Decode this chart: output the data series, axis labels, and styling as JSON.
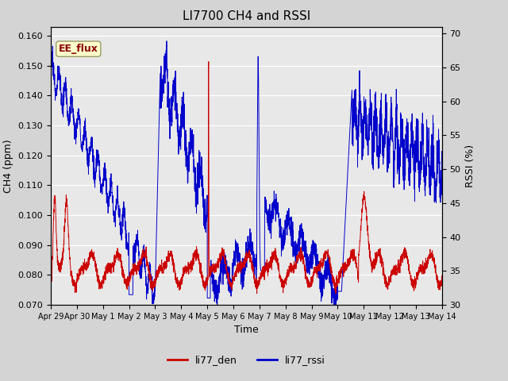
{
  "title": "LI7700 CH4 and RSSI",
  "xlabel": "Time",
  "ylabel_left": "CH4 (ppm)",
  "ylabel_right": "RSSI (%)",
  "ylim_left": [
    0.07,
    0.163
  ],
  "ylim_right": [
    30,
    71
  ],
  "yticks_left": [
    0.07,
    0.08,
    0.09,
    0.1,
    0.11,
    0.12,
    0.13,
    0.14,
    0.15,
    0.16
  ],
  "yticks_right": [
    30,
    35,
    40,
    45,
    50,
    55,
    60,
    65,
    70
  ],
  "color_ch4": "#cc0000",
  "color_rssi": "#0000cc",
  "legend_labels": [
    "li77_den",
    "li77_rssi"
  ],
  "annotation_text": "EE_flux",
  "fig_facecolor": "#d4d4d4",
  "ax_facecolor": "#e8e8e8",
  "grid_color": "white",
  "x_tick_labels": [
    "Apr 29",
    "Apr 30",
    "May 1",
    "May 2",
    "May 3",
    "May 4",
    "May 5",
    "May 6",
    "May 7",
    "May 8",
    "May 9",
    "May 10",
    "May 11",
    "May 12",
    "May 13",
    "May 14"
  ],
  "x_tick_positions": [
    0,
    1,
    2,
    3,
    4,
    5,
    6,
    7,
    8,
    9,
    10,
    11,
    12,
    13,
    14,
    15
  ]
}
